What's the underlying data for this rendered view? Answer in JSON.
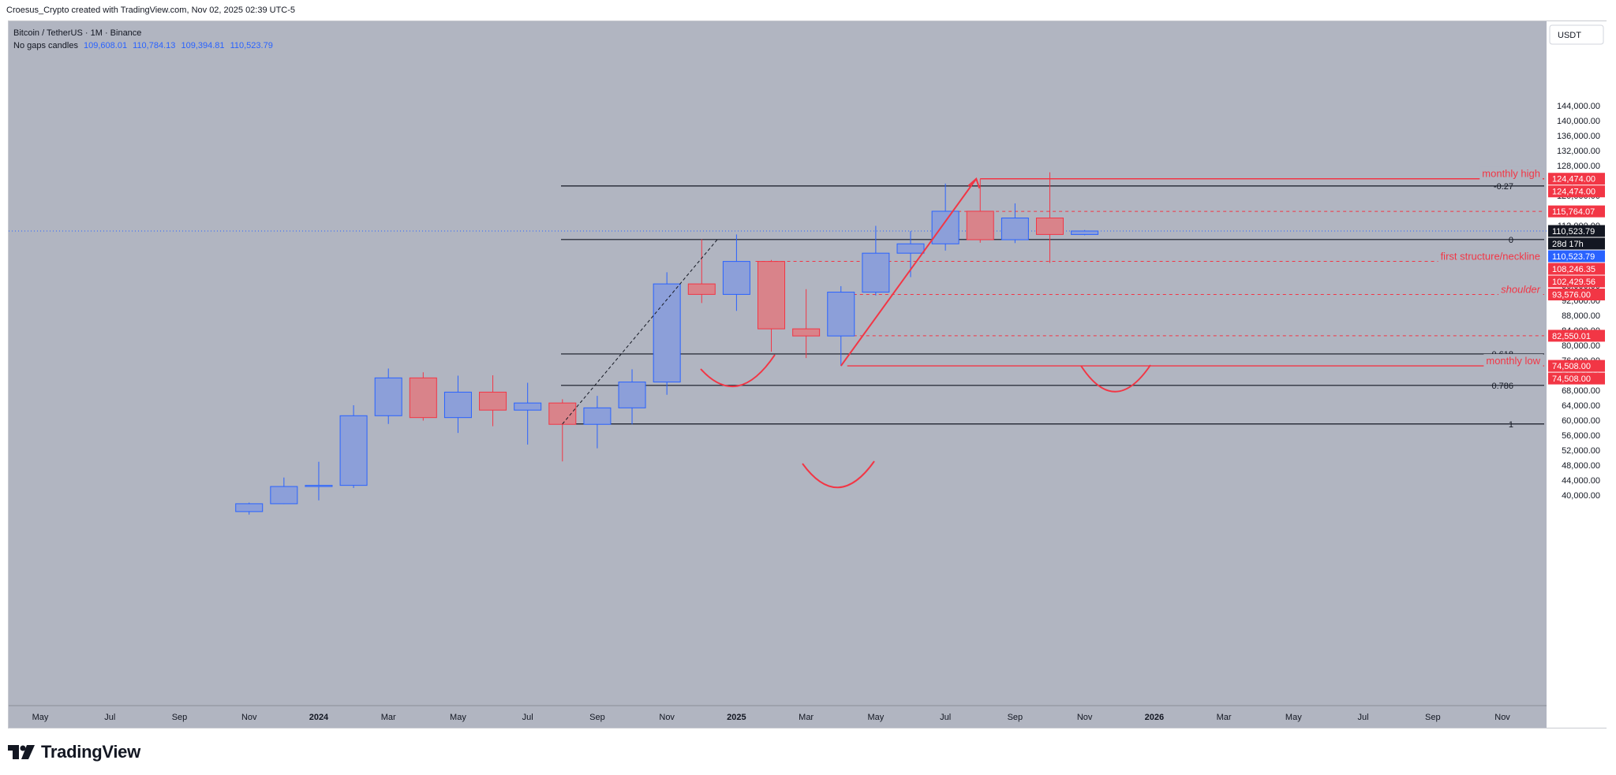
{
  "header": {
    "attribution": "Croesus_Crypto created with TradingView.com, Nov 02, 2025 02:39 UTC-5"
  },
  "legend": {
    "symbol_line": "Bitcoin / TetherUS · 1M · Binance",
    "candles_label": "No gaps candles",
    "ohlc": [
      "109,608.01",
      "110,784.13",
      "109,394.81",
      "110,523.79"
    ]
  },
  "currency": "USDT",
  "brand": "TradingView",
  "colors": {
    "background": "#b1b5c1",
    "up": "#8c9fd9",
    "up_border": "#2962ff",
    "down": "#d9838a",
    "down_border": "#f23645",
    "drawing": "#f23645",
    "fib": "#131722"
  },
  "chart_data": {
    "type": "candlestick",
    "interval": "1M",
    "ylim": [
      36000,
      148000
    ],
    "y_ticks": [
      "40,000.00",
      "44,000.00",
      "48,000.00",
      "52,000.00",
      "56,000.00",
      "60,000.00",
      "64,000.00",
      "68,000.00",
      "72,000.00",
      "76,000.00",
      "80,000.00",
      "84,000.00",
      "88,000.00",
      "92,000.00",
      "96,000.00",
      "100,000.00",
      "104,000.00",
      "108,000.00",
      "112,000.00",
      "116,000.00",
      "120,000.00",
      "124,000.00",
      "128,000.00",
      "132,000.00",
      "136,000.00",
      "140,000.00",
      "144,000.00"
    ],
    "x_ticks": [
      {
        "month": "2023-05",
        "label": "May",
        "bold": false
      },
      {
        "month": "2023-07",
        "label": "Jul",
        "bold": false
      },
      {
        "month": "2023-09",
        "label": "Sep",
        "bold": false
      },
      {
        "month": "2023-11",
        "label": "Nov",
        "bold": false
      },
      {
        "month": "2024-01",
        "label": "2024",
        "bold": true
      },
      {
        "month": "2024-03",
        "label": "Mar",
        "bold": false
      },
      {
        "month": "2024-05",
        "label": "May",
        "bold": false
      },
      {
        "month": "2024-07",
        "label": "Jul",
        "bold": false
      },
      {
        "month": "2024-09",
        "label": "Sep",
        "bold": false
      },
      {
        "month": "2024-11",
        "label": "Nov",
        "bold": false
      },
      {
        "month": "2025-01",
        "label": "2025",
        "bold": true
      },
      {
        "month": "2025-03",
        "label": "Mar",
        "bold": false
      },
      {
        "month": "2025-05",
        "label": "May",
        "bold": false
      },
      {
        "month": "2025-07",
        "label": "Jul",
        "bold": false
      },
      {
        "month": "2025-09",
        "label": "Sep",
        "bold": false
      },
      {
        "month": "2025-11",
        "label": "Nov",
        "bold": false
      },
      {
        "month": "2026-01",
        "label": "2026",
        "bold": true
      },
      {
        "month": "2026-03",
        "label": "Mar",
        "bold": false
      },
      {
        "month": "2026-05",
        "label": "May",
        "bold": false
      },
      {
        "month": "2026-07",
        "label": "Jul",
        "bold": false
      },
      {
        "month": "2026-09",
        "label": "Sep",
        "bold": false
      },
      {
        "month": "2026-11",
        "label": "Nov",
        "bold": false
      }
    ],
    "candles": [
      {
        "month": "2023-11",
        "open": 35600,
        "high": 38000,
        "low": 34800,
        "close": 37700
      },
      {
        "month": "2023-12",
        "open": 37700,
        "high": 44700,
        "low": 37600,
        "close": 42300
      },
      {
        "month": "2024-01",
        "open": 42300,
        "high": 48900,
        "low": 38600,
        "close": 42600
      },
      {
        "month": "2024-02",
        "open": 42600,
        "high": 64000,
        "low": 41900,
        "close": 61200
      },
      {
        "month": "2024-03",
        "open": 61200,
        "high": 73800,
        "low": 59000,
        "close": 71300
      },
      {
        "month": "2024-04",
        "open": 71300,
        "high": 72800,
        "low": 59900,
        "close": 60700
      },
      {
        "month": "2024-05",
        "open": 60700,
        "high": 71900,
        "low": 56600,
        "close": 67500
      },
      {
        "month": "2024-06",
        "open": 67500,
        "high": 72000,
        "low": 58400,
        "close": 62700
      },
      {
        "month": "2024-07",
        "open": 62700,
        "high": 70000,
        "low": 53500,
        "close": 64600
      },
      {
        "month": "2024-08",
        "open": 64600,
        "high": 65600,
        "low": 49000,
        "close": 58900
      },
      {
        "month": "2024-09",
        "open": 58900,
        "high": 66500,
        "low": 52500,
        "close": 63300
      },
      {
        "month": "2024-10",
        "open": 63300,
        "high": 73600,
        "low": 58900,
        "close": 70200
      },
      {
        "month": "2024-11",
        "open": 70200,
        "high": 99500,
        "low": 66800,
        "close": 96400
      },
      {
        "month": "2024-12",
        "open": 96400,
        "high": 108300,
        "low": 91300,
        "close": 93600
      },
      {
        "month": "2025-01",
        "open": 93600,
        "high": 109600,
        "low": 89200,
        "close": 102400
      },
      {
        "month": "2025-02",
        "open": 102400,
        "high": 102800,
        "low": 78300,
        "close": 84400
      },
      {
        "month": "2025-03",
        "open": 84400,
        "high": 95000,
        "low": 76600,
        "close": 82500
      },
      {
        "month": "2025-04",
        "open": 82500,
        "high": 95800,
        "low": 74500,
        "close": 94200
      },
      {
        "month": "2025-05",
        "open": 94200,
        "high": 111900,
        "low": 93300,
        "close": 104600
      },
      {
        "month": "2025-06",
        "open": 104600,
        "high": 110500,
        "low": 98200,
        "close": 107100
      },
      {
        "month": "2025-07",
        "open": 107100,
        "high": 123200,
        "low": 105300,
        "close": 115800
      },
      {
        "month": "2025-08",
        "open": 115800,
        "high": 124474,
        "low": 107400,
        "close": 108200
      },
      {
        "month": "2025-09",
        "open": 108200,
        "high": 117900,
        "low": 107300,
        "close": 114000
      },
      {
        "month": "2025-10",
        "open": 114000,
        "high": 126200,
        "low": 102000,
        "close": 109600
      },
      {
        "month": "2025-11",
        "open": 109600,
        "high": 110784,
        "low": 109395,
        "close": 110524
      }
    ],
    "fib_levels": [
      {
        "label": "-0.27",
        "price": 122550
      },
      {
        "label": "0",
        "price": 108246
      },
      {
        "label": "0.618",
        "price": 77700
      },
      {
        "label": "0.786",
        "price": 69300
      },
      {
        "label": "1",
        "price": 59000
      }
    ],
    "horizontal_levels": [
      {
        "label": "monthly high",
        "price": 124474,
        "style": "solid"
      },
      {
        "label": "",
        "price": 115764,
        "style": "dashed"
      },
      {
        "label": "first structure/neckline",
        "price": 102430,
        "style": "dashed"
      },
      {
        "label": "shoulder",
        "price": 93576,
        "style": "dashed"
      },
      {
        "label": "",
        "price": 82550,
        "style": "dashed"
      },
      {
        "label": "monthly low",
        "price": 74508,
        "style": "solid"
      }
    ],
    "axis_tags": [
      {
        "text": "124,474.00",
        "price": 124474,
        "color": "#f23645"
      },
      {
        "text": "124,474.00",
        "price": 124474,
        "color": "#f23645"
      },
      {
        "text": "115,764.07",
        "price": 115764,
        "color": "#f23645"
      },
      {
        "text": "110,523.79",
        "price": 110524,
        "color": "#131722"
      },
      {
        "text": "28d 17h",
        "price": 110524,
        "color": "#131722"
      },
      {
        "text": "110,523.79",
        "price": 110524,
        "color": "#2962ff"
      },
      {
        "text": "108,246.35",
        "price": 108246,
        "color": "#f23645"
      },
      {
        "text": "102,429.56",
        "price": 102430,
        "color": "#f23645"
      },
      {
        "text": "93,576.00",
        "price": 93576,
        "color": "#f23645"
      },
      {
        "text": "82,550.01",
        "price": 82550,
        "color": "#f23645"
      },
      {
        "text": "74,508.00",
        "price": 74508,
        "color": "#f23645"
      },
      {
        "text": "74,508.00",
        "price": 74508,
        "color": "#f23645"
      }
    ],
    "current_price": 110524
  }
}
